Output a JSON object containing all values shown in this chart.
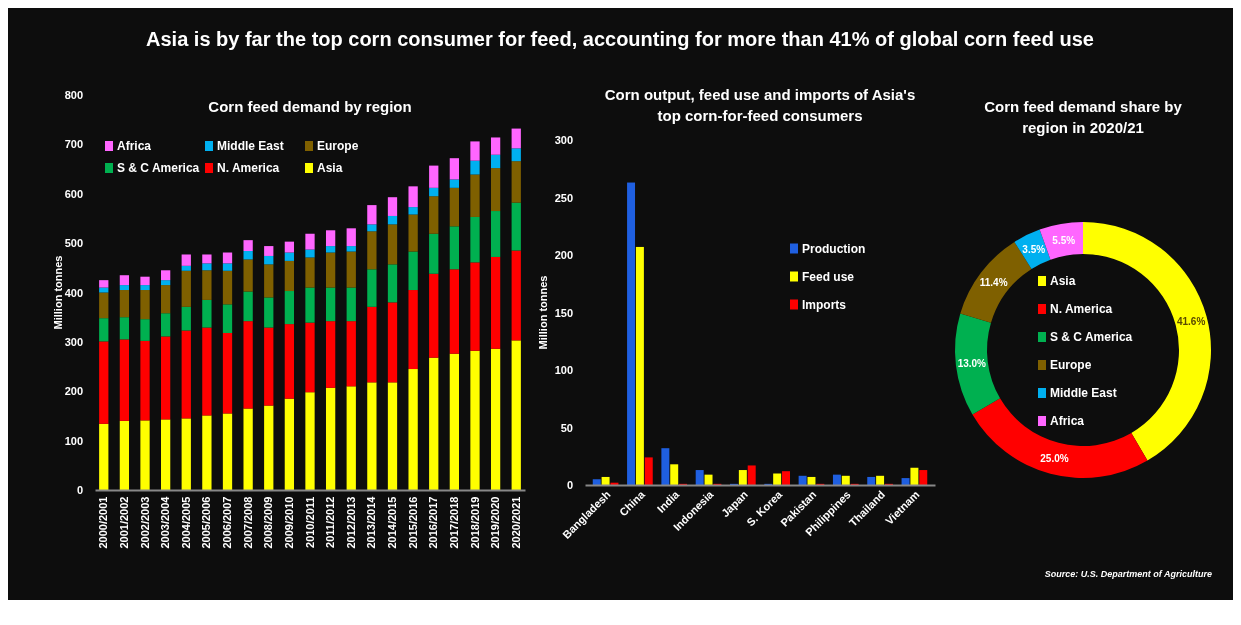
{
  "chart_data": [
    {
      "type": "bar",
      "title": "Corn feed demand by region",
      "ylabel": "Million tonnes",
      "annotations": [
        "Asia is by far the top corn consumer for feed, accounting for more than 41% of global corn feed use"
      ],
      "categories": [
        "2000/2001",
        "2001/2002",
        "2002/2003",
        "2003/2004",
        "2004/2005",
        "2005/2006",
        "2006/2007",
        "2007/2008",
        "2008/2009",
        "2009/2010",
        "2010/2011",
        "2011/2012",
        "2012/2013",
        "2013/2014",
        "2014/2015",
        "2015/2016",
        "2016/2017",
        "2017/2018",
        "2018/2019",
        "2019/2020",
        "2020/2021"
      ],
      "stacked": true,
      "ylim": [
        0,
        800
      ],
      "yticks": [
        0,
        100,
        200,
        300,
        400,
        500,
        600,
        700,
        800
      ],
      "legend": "top left",
      "series": [
        {
          "name": "Asia",
          "color": "#ffff00",
          "values": [
            134,
            140,
            141,
            143,
            145,
            151,
            155,
            165,
            171,
            185,
            198,
            207,
            210,
            218,
            218,
            245,
            268,
            276,
            282,
            286,
            303
          ]
        },
        {
          "name": "N. America",
          "color": "#ff0000",
          "values": [
            167,
            165,
            161,
            168,
            178,
            178,
            163,
            177,
            158,
            151,
            141,
            135,
            132,
            153,
            162,
            160,
            170,
            171,
            179,
            186,
            182
          ]
        },
        {
          "name": "S & C America",
          "color": "#00b050",
          "values": [
            47,
            45,
            44,
            47,
            48,
            56,
            58,
            60,
            61,
            67,
            71,
            68,
            68,
            76,
            77,
            78,
            81,
            87,
            92,
            93,
            97
          ]
        },
        {
          "name": "Europe",
          "color": "#7f6000",
          "values": [
            52,
            55,
            59,
            57,
            73,
            60,
            68,
            65,
            67,
            61,
            61,
            71,
            73,
            77,
            81,
            75,
            76,
            78,
            86,
            87,
            84
          ]
        },
        {
          "name": "Middle East",
          "color": "#00b0f0",
          "values": [
            10,
            10,
            10,
            10,
            10,
            14,
            15,
            17,
            17,
            17,
            16,
            13,
            11,
            14,
            17,
            15,
            17,
            17,
            28,
            27,
            26
          ]
        },
        {
          "name": "Africa",
          "color": "#ff66ff",
          "values": [
            15,
            20,
            17,
            20,
            23,
            18,
            22,
            22,
            20,
            22,
            32,
            32,
            36,
            39,
            38,
            42,
            45,
            43,
            39,
            35,
            40
          ]
        }
      ]
    },
    {
      "type": "bar",
      "title": "Corn output, feed use and imports of Asia's top corn-for-feed consumers",
      "ylabel": "Million tonnes",
      "categories": [
        "Bangladesh",
        "China",
        "India",
        "Indonesia",
        "Japan",
        "S. Korea",
        "Pakistan",
        "Philippines",
        "Thailand",
        "Vietnam"
      ],
      "ylim": [
        0,
        300
      ],
      "yticks": [
        0,
        50,
        100,
        150,
        200,
        250,
        300
      ],
      "legend": "right",
      "series": [
        {
          "name": "Production",
          "color": "#1f5fe0",
          "values": [
            5,
            263,
            32,
            13,
            1,
            1,
            8,
            9,
            7,
            6
          ]
        },
        {
          "name": "Feed use",
          "color": "#ffff00",
          "values": [
            7,
            207,
            18,
            9,
            13,
            10,
            7,
            8,
            8,
            15
          ]
        },
        {
          "name": "Imports",
          "color": "#ff0000",
          "values": [
            2,
            24,
            1,
            1,
            17,
            12,
            1,
            1,
            1,
            13
          ]
        }
      ]
    },
    {
      "type": "donut",
      "title": "Corn feed demand share by region in 2020/21",
      "legend": "center",
      "annotations": [
        "Source: U.S. Department of Agriculture"
      ],
      "categories": [
        "Asia",
        "N. America",
        "S & C America",
        "Europe",
        "Middle East",
        "Africa"
      ],
      "values": [
        41.6,
        25.0,
        13.0,
        11.4,
        3.5,
        5.5
      ],
      "colors": [
        "#ffff00",
        "#ff0000",
        "#00b050",
        "#7f6000",
        "#00b0f0",
        "#ff66ff"
      ],
      "value_labels": [
        "41.6%",
        "25.0%",
        "13.0%",
        "11.4%",
        "3.5%",
        "5.5%"
      ]
    }
  ]
}
